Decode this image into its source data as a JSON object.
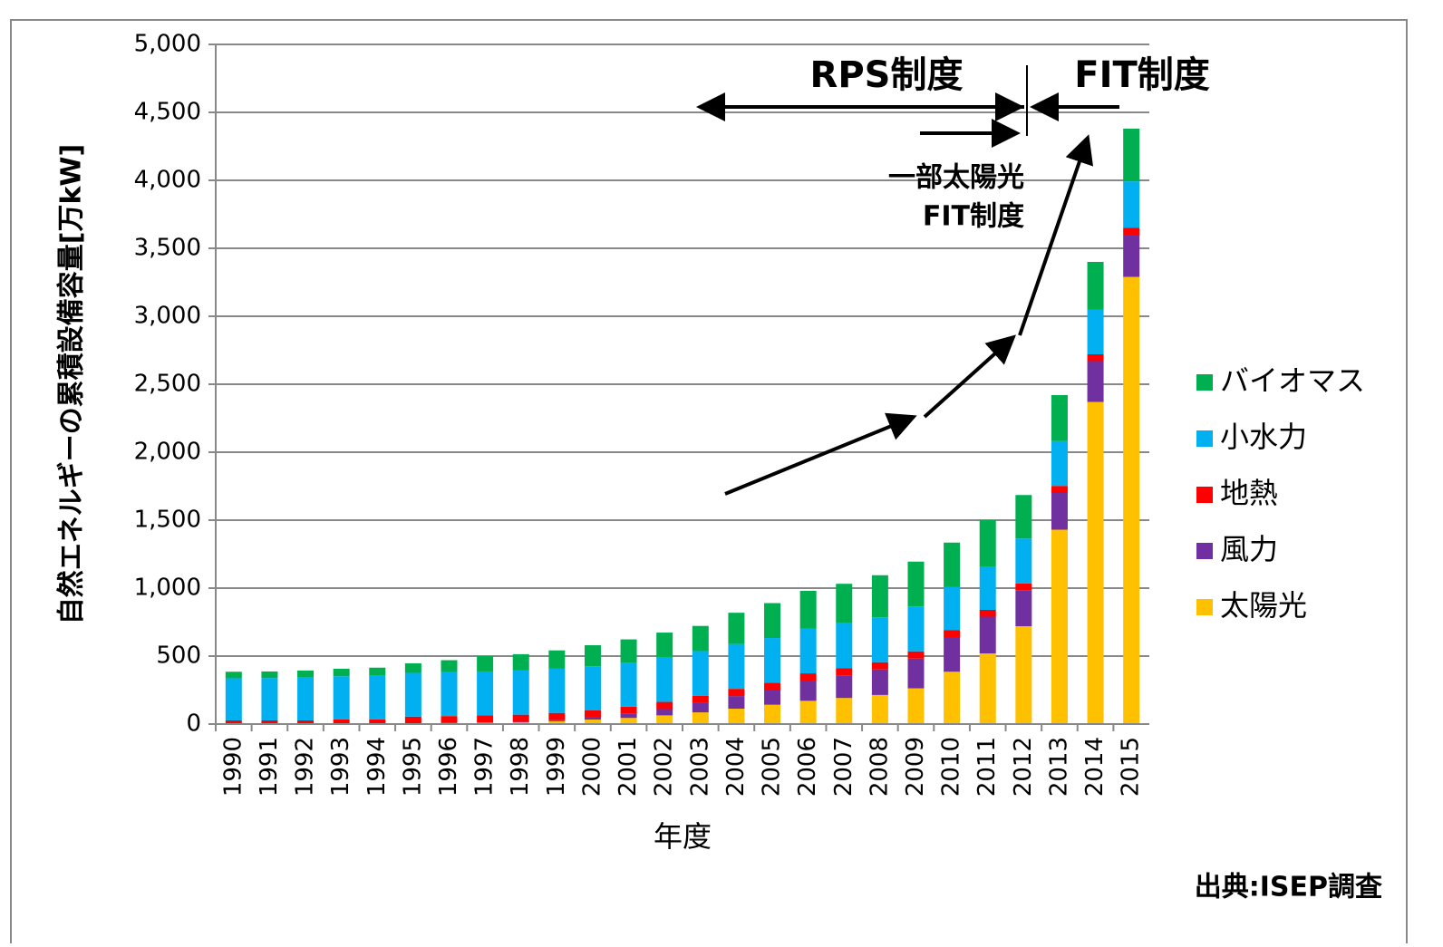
{
  "chart_data": {
    "type": "stacked_bar",
    "ylabel": "自然エネルギーの累積設備容量[万kW]",
    "xlabel": "年度",
    "categories": [
      "1990",
      "1991",
      "1992",
      "1993",
      "1994",
      "1995",
      "1996",
      "1997",
      "1998",
      "1999",
      "2000",
      "2001",
      "2002",
      "2003",
      "2004",
      "2005",
      "2006",
      "2007",
      "2008",
      "2009",
      "2010",
      "2011",
      "2012",
      "2013",
      "2014",
      "2015"
    ],
    "series": [
      {
        "name": "太陽光",
        "color": "#ffc000",
        "values": [
          0,
          0,
          0,
          1,
          1,
          4,
          6,
          9,
          13,
          21,
          33,
          45,
          64,
          86,
          113,
          142,
          171,
          192,
          214,
          263,
          385,
          520,
          720,
          1430,
          2370,
          3290
        ]
      },
      {
        "name": "風力",
        "color": "#7030a0",
        "values": [
          0,
          0,
          0,
          0,
          1,
          1,
          2,
          2,
          3,
          8,
          14,
          30,
          46,
          68,
          93,
          108,
          149,
          167,
          188,
          219,
          255,
          270,
          265,
          270,
          300,
          310
        ]
      },
      {
        "name": "地熱",
        "color": "#ff0000",
        "values": [
          27,
          27,
          27,
          33,
          33,
          50,
          51,
          53,
          53,
          53,
          53,
          53,
          53,
          53,
          53,
          53,
          53,
          53,
          53,
          53,
          50,
          50,
          50,
          52,
          50,
          52
        ]
      },
      {
        "name": "小水力",
        "color": "#00b0f0",
        "values": [
          310,
          312,
          315,
          318,
          320,
          322,
          322,
          323,
          325,
          325,
          325,
          325,
          325,
          330,
          330,
          330,
          330,
          330,
          330,
          330,
          320,
          320,
          330,
          330,
          330,
          340
        ]
      },
      {
        "name": "バイオマス",
        "color": "#00b050",
        "values": [
          48,
          48,
          52,
          55,
          60,
          70,
          89,
          113,
          120,
          135,
          155,
          170,
          185,
          185,
          230,
          257,
          277,
          290,
          310,
          330,
          325,
          340,
          320,
          338,
          350,
          388
        ]
      }
    ],
    "ylim": [
      0,
      5000
    ],
    "yticks": [
      0,
      500,
      {
        "value": 1000,
        "label": "1,000"
      },
      {
        "value": 1500,
        "label": "1,500"
      },
      {
        "value": 2000,
        "label": "2,000"
      },
      {
        "value": 2500,
        "label": "2,500"
      },
      {
        "value": 3000,
        "label": "3,000"
      },
      {
        "value": 3500,
        "label": "3,500"
      },
      {
        "value": 4000,
        "label": "4,000"
      },
      {
        "value": 4500,
        "label": "4,500"
      },
      {
        "value": 5000,
        "label": "5,000"
      }
    ],
    "grid": true,
    "legend": "right",
    "annotations": {
      "rps": "RPS制度",
      "fit": "FIT制度",
      "partial": [
        "一部太陽光",
        "FIT制度"
      ],
      "source": "出典:ISEP調査"
    }
  }
}
